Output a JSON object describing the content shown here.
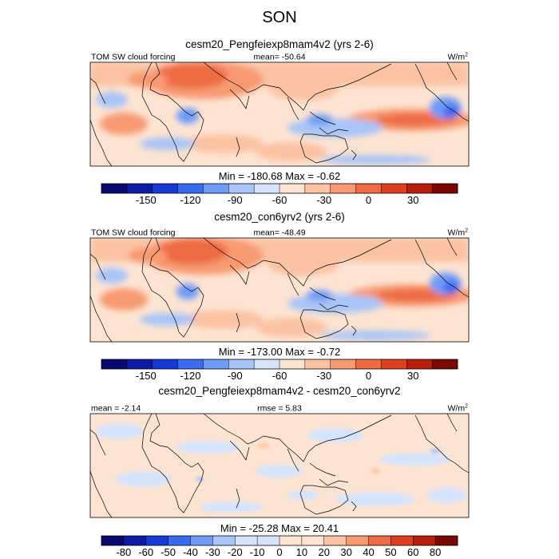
{
  "page_title": "SON",
  "colors": {
    "b1": "#08086e",
    "b2": "#0d1aa6",
    "b3": "#1638d4",
    "b4": "#3a6af0",
    "b5": "#6f9bf6",
    "b6": "#a8c4f8",
    "b7": "#d6e4fb",
    "r1": "#fde4d2",
    "r2": "#fbc3a3",
    "r3": "#f79a72",
    "r4": "#ee6a42",
    "r5": "#dd3f1f",
    "r6": "#b81e0b",
    "r7": "#7c0600",
    "land": "#000000"
  },
  "chart_data": [
    {
      "type": "heatmap",
      "title": "cesm20_Pengfeiexp8mam4v2 (yrs 2-6)",
      "left_label": "TOM SW cloud forcing",
      "center_label": "mean= -50.64",
      "units_base": "W/m",
      "units_exp": "2",
      "stats": "Min = -180.68 Max =  -0.62",
      "colorbar": {
        "levels": [
          -150,
          -120,
          -90,
          -60,
          -30,
          0,
          30
        ],
        "tick_labels": [
          "-150",
          "-120",
          "-90",
          "-60",
          "-30",
          "0",
          "30"
        ],
        "colors": [
          "b1",
          "b2",
          "b3",
          "b4",
          "b5",
          "b6",
          "b7",
          "r1",
          "r2",
          "r3",
          "r4",
          "r5",
          "r6",
          "r7"
        ]
      }
    },
    {
      "type": "heatmap",
      "title": "cesm20_con6yrv2 (yrs 2-6)",
      "left_label": "TOM SW cloud forcing",
      "center_label": "mean= -48.49",
      "units_base": "W/m",
      "units_exp": "2",
      "stats": "Min = -173.00 Max =  -0.72",
      "colorbar": {
        "levels": [
          -150,
          -120,
          -90,
          -60,
          -30,
          0,
          30
        ],
        "tick_labels": [
          "-150",
          "-120",
          "-90",
          "-60",
          "-30",
          "0",
          "30"
        ],
        "colors": [
          "b1",
          "b2",
          "b3",
          "b4",
          "b5",
          "b6",
          "b7",
          "r1",
          "r2",
          "r3",
          "r4",
          "r5",
          "r6",
          "r7"
        ]
      }
    },
    {
      "type": "heatmap",
      "title": "cesm20_Pengfeiexp8mam4v2 - cesm20_con6yrv2",
      "left_label": "mean =  -2.14",
      "center_label": "rmse =   5.83",
      "units_base": "W/m",
      "units_exp": "2",
      "stats": "Min = -25.28 Max =  20.41",
      "colorbar": {
        "levels": [
          -80,
          -60,
          -50,
          -40,
          -30,
          -20,
          -10,
          0,
          10,
          20,
          30,
          40,
          50,
          60,
          80
        ],
        "tick_labels": [
          "-80",
          "-60",
          "-50",
          "-40",
          "-30",
          "-20",
          "-10",
          "0",
          "10",
          "20",
          "30",
          "40",
          "50",
          "60",
          "80"
        ],
        "colors": [
          "b1",
          "b2",
          "b3",
          "b4",
          "b5",
          "b6",
          "b7",
          "b7",
          "r1",
          "r1",
          "r2",
          "r3",
          "r4",
          "r5",
          "r6",
          "r7"
        ]
      }
    }
  ]
}
